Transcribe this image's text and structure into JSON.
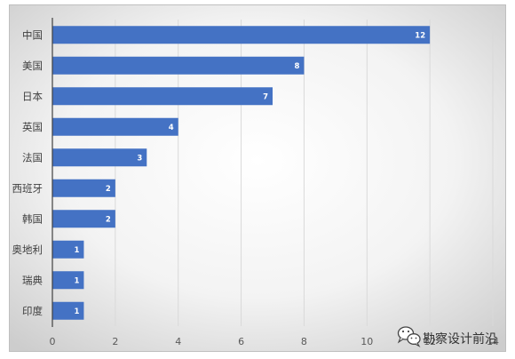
{
  "chart_data": {
    "type": "bar",
    "orientation": "horizontal",
    "categories": [
      "中国",
      "美国",
      "日本",
      "英国",
      "法国",
      "西班牙",
      "韩国",
      "奥地利",
      "瑞典",
      "印度"
    ],
    "values": [
      12,
      8,
      7,
      4,
      3,
      2,
      2,
      1,
      1,
      1
    ],
    "xlim": [
      0,
      14
    ],
    "xticks": [
      0,
      2,
      4,
      6,
      8,
      10,
      12,
      14
    ],
    "grid": "vertical",
    "legend": "none",
    "data_labels": "inside-end",
    "colors": {
      "bar": "#4472C4",
      "data_label": "#FFFFFF",
      "gridline": "#D9D9D9",
      "axis": "#595959",
      "text": "#404040"
    }
  },
  "watermark": {
    "text": "勘察设计前沿",
    "icon": "wechat-icon"
  }
}
